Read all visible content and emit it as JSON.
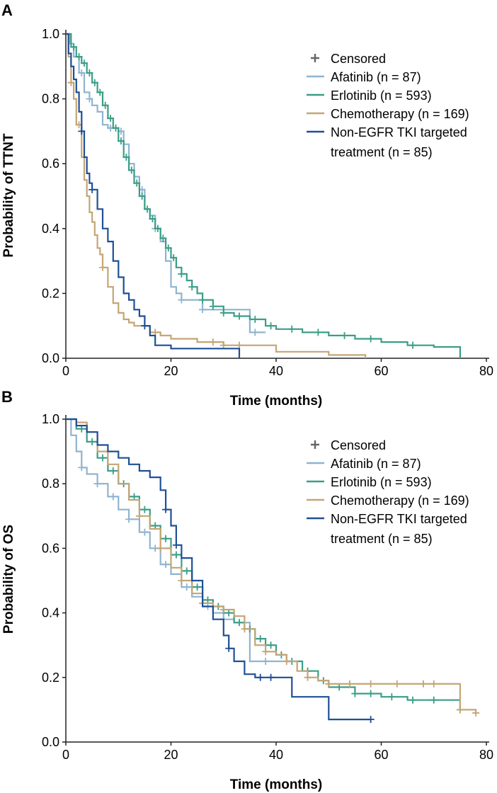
{
  "panel_labels": [
    "A",
    "B"
  ],
  "legend": {
    "censored_label": "Censored",
    "entries": [
      "Afatinib (n = 87)",
      "Erlotinib (n = 593)",
      "Chemotherapy (n = 169)",
      "Non-EGFR TKI targeted treatment (n = 85)"
    ],
    "entry_lines": [
      [
        "Afatinib (n = 87)"
      ],
      [
        "Erlotinib (n = 593)"
      ],
      [
        "Chemotherapy (n = 169)"
      ],
      [
        "Non-EGFR TKI targeted",
        "treatment (n = 85)"
      ]
    ]
  },
  "series_colors": {
    "Afatinib": "#8fb4d0",
    "Erlotinib": "#3a9e86",
    "Chemotherapy": "#c4a574",
    "Non-EGFR TKI": "#1f4f96",
    "Censored": "#666666"
  },
  "chart_data": [
    {
      "type": "line",
      "panel": "A",
      "title": "",
      "xlabel": "Time (months)",
      "ylabel": "Probability of TTNT",
      "xlim": [
        0,
        80
      ],
      "ylim": [
        0,
        1.0
      ],
      "xticks": [
        0,
        20,
        40,
        60,
        80
      ],
      "yticks": [
        "0.0",
        "0.2",
        "0.4",
        "0.6",
        "0.8",
        "1.0"
      ],
      "grid": false,
      "legend_position": "top-right",
      "series": [
        {
          "name": "Afatinib (n = 87)",
          "color": "#8fb4d0",
          "x": [
            0,
            0.8,
            1.5,
            2.5,
            3.5,
            4.5,
            5,
            6,
            7,
            8,
            10,
            11,
            12,
            13,
            14,
            15,
            16,
            17,
            18,
            19,
            20,
            21,
            22,
            24,
            26,
            30,
            35,
            36,
            38
          ],
          "y": [
            1.0,
            0.97,
            0.93,
            0.88,
            0.82,
            0.8,
            0.78,
            0.76,
            0.72,
            0.71,
            0.7,
            0.66,
            0.6,
            0.56,
            0.52,
            0.46,
            0.44,
            0.4,
            0.36,
            0.3,
            0.22,
            0.2,
            0.18,
            0.18,
            0.15,
            0.15,
            0.08,
            0.08,
            0.08
          ],
          "censored_x": [
            3,
            4.5,
            8.5,
            10.5,
            14.5,
            17,
            22,
            26,
            36
          ]
        },
        {
          "name": "Erlotinib (n = 593)",
          "color": "#3a9e86",
          "x": [
            0,
            1,
            2,
            3,
            4,
            5,
            6,
            7,
            8,
            9,
            10,
            11,
            12,
            13,
            14,
            15,
            16,
            17,
            18,
            19,
            20,
            21,
            22,
            23,
            24,
            25,
            26,
            28,
            30,
            32,
            35,
            38,
            40,
            45,
            50,
            55,
            60,
            65,
            70,
            75
          ],
          "y": [
            1.0,
            0.96,
            0.93,
            0.91,
            0.88,
            0.85,
            0.82,
            0.78,
            0.74,
            0.71,
            0.67,
            0.62,
            0.58,
            0.54,
            0.5,
            0.46,
            0.43,
            0.4,
            0.37,
            0.34,
            0.31,
            0.28,
            0.26,
            0.24,
            0.22,
            0.2,
            0.18,
            0.16,
            0.14,
            0.13,
            0.12,
            0.1,
            0.09,
            0.08,
            0.07,
            0.06,
            0.05,
            0.04,
            0.035,
            0.0
          ],
          "censored_x": [
            1.5,
            2.5,
            3.5,
            4.5,
            5.5,
            6.5,
            7.5,
            8.5,
            9.5,
            10.5,
            11.5,
            12.5,
            13.5,
            14.5,
            15.5,
            16.5,
            17.5,
            18.5,
            19.5,
            20.5,
            22,
            24,
            26,
            28,
            30,
            33,
            36,
            39,
            43,
            48,
            53,
            58,
            66
          ]
        },
        {
          "name": "Chemotherapy (n = 169)",
          "color": "#c4a574",
          "x": [
            0,
            0.5,
            1,
            1.5,
            2,
            3,
            3.5,
            4,
            4.5,
            5,
            5.5,
            6,
            6.5,
            7,
            8,
            9,
            10,
            11,
            12,
            13,
            15,
            16,
            18,
            20,
            25,
            30,
            33,
            40,
            45,
            50,
            57
          ],
          "y": [
            1.0,
            0.93,
            0.85,
            0.8,
            0.72,
            0.62,
            0.55,
            0.5,
            0.45,
            0.42,
            0.38,
            0.34,
            0.32,
            0.28,
            0.22,
            0.17,
            0.14,
            0.12,
            0.11,
            0.1,
            0.1,
            0.08,
            0.07,
            0.06,
            0.05,
            0.04,
            0.04,
            0.02,
            0.02,
            0.01,
            0.0
          ],
          "censored_x": [
            1,
            2.5,
            7,
            17,
            28,
            30,
            33
          ]
        },
        {
          "name": "Non-EGFR TKI targeted treatment (n = 85)",
          "color": "#1f4f96",
          "x": [
            0,
            0.5,
            1,
            1.5,
            2,
            2.5,
            3,
            3.5,
            4,
            4.5,
            5,
            6,
            7,
            8,
            9,
            10,
            11,
            12,
            13,
            14,
            15,
            16,
            17,
            20,
            25,
            30,
            33
          ],
          "y": [
            1.0,
            0.94,
            0.9,
            0.86,
            0.82,
            0.76,
            0.7,
            0.62,
            0.57,
            0.54,
            0.52,
            0.46,
            0.4,
            0.36,
            0.3,
            0.25,
            0.2,
            0.18,
            0.15,
            0.13,
            0.1,
            0.07,
            0.04,
            0.03,
            0.03,
            0.03,
            0.0
          ],
          "censored_x": [
            3,
            5,
            15
          ]
        }
      ]
    },
    {
      "type": "line",
      "panel": "B",
      "title": "",
      "xlabel": "Time (months)",
      "ylabel": "Probability of OS",
      "xlim": [
        0,
        80
      ],
      "ylim": [
        0,
        1.0
      ],
      "xticks": [
        0,
        20,
        40,
        60,
        80
      ],
      "yticks": [
        "0.0",
        "0.2",
        "0.4",
        "0.6",
        "0.8",
        "1.0"
      ],
      "grid": false,
      "legend_position": "top-right",
      "series": [
        {
          "name": "Afatinib (n = 87)",
          "color": "#8fb4d0",
          "x": [
            0,
            1,
            2,
            3,
            4,
            6,
            8,
            10,
            12,
            14,
            16,
            18,
            20,
            22,
            24,
            26,
            28,
            30,
            32,
            35,
            38,
            43
          ],
          "y": [
            1.0,
            0.95,
            0.9,
            0.85,
            0.83,
            0.8,
            0.76,
            0.72,
            0.69,
            0.65,
            0.6,
            0.55,
            0.52,
            0.48,
            0.45,
            0.42,
            0.4,
            0.38,
            0.37,
            0.25,
            0.25,
            0.25
          ],
          "censored_x": [
            3,
            6,
            9,
            12,
            15,
            17,
            19,
            23,
            27,
            38
          ]
        },
        {
          "name": "Erlotinib (n = 593)",
          "color": "#3a9e86",
          "x": [
            0,
            2,
            4,
            6,
            8,
            10,
            12,
            14,
            16,
            18,
            20,
            22,
            24,
            26,
            28,
            30,
            32,
            34,
            36,
            38,
            40,
            42,
            45,
            48,
            50,
            55,
            60,
            65,
            70,
            75
          ],
          "y": [
            1.0,
            0.97,
            0.93,
            0.88,
            0.84,
            0.8,
            0.76,
            0.72,
            0.67,
            0.63,
            0.58,
            0.53,
            0.48,
            0.44,
            0.42,
            0.4,
            0.37,
            0.35,
            0.32,
            0.3,
            0.27,
            0.25,
            0.22,
            0.19,
            0.17,
            0.15,
            0.14,
            0.13,
            0.13,
            0.1
          ],
          "censored_x": [
            3,
            5,
            7,
            9,
            11,
            13,
            15,
            17,
            19,
            21,
            23,
            25,
            27,
            29,
            31,
            33,
            35,
            37,
            39,
            41,
            43,
            46,
            49,
            52,
            55,
            58,
            62,
            66,
            70,
            75
          ]
        },
        {
          "name": "Chemotherapy (n = 169)",
          "color": "#c4a574",
          "x": [
            0,
            2,
            4,
            6,
            8,
            10,
            12,
            14,
            16,
            18,
            20,
            22,
            24,
            26,
            28,
            30,
            32,
            34,
            36,
            38,
            40,
            42,
            44,
            46,
            48,
            50,
            55,
            60,
            65,
            70,
            75,
            78
          ],
          "y": [
            1.0,
            0.99,
            0.96,
            0.9,
            0.86,
            0.8,
            0.75,
            0.7,
            0.66,
            0.6,
            0.54,
            0.5,
            0.46,
            0.43,
            0.42,
            0.41,
            0.39,
            0.35,
            0.3,
            0.28,
            0.27,
            0.25,
            0.22,
            0.2,
            0.19,
            0.18,
            0.18,
            0.18,
            0.18,
            0.18,
            0.1,
            0.09
          ],
          "censored_x": [
            14,
            18,
            22,
            26,
            30,
            34,
            38,
            42,
            46,
            50,
            54,
            58,
            63,
            68,
            70,
            75,
            78
          ]
        },
        {
          "name": "Non-EGFR TKI targeted treatment (n = 85)",
          "color": "#1f4f96",
          "x": [
            0,
            2,
            4,
            6,
            8,
            10,
            12,
            14,
            16,
            18,
            19,
            20,
            21,
            22,
            24,
            26,
            28,
            30,
            31,
            32,
            34,
            36,
            40,
            43,
            46,
            50,
            55,
            58
          ],
          "y": [
            1.0,
            0.98,
            0.96,
            0.92,
            0.9,
            0.88,
            0.86,
            0.84,
            0.82,
            0.78,
            0.72,
            0.67,
            0.61,
            0.57,
            0.5,
            0.42,
            0.38,
            0.33,
            0.29,
            0.25,
            0.21,
            0.2,
            0.2,
            0.14,
            0.14,
            0.07,
            0.07,
            0.07
          ],
          "censored_x": [
            19,
            21,
            31,
            37,
            39,
            58
          ]
        }
      ]
    }
  ]
}
